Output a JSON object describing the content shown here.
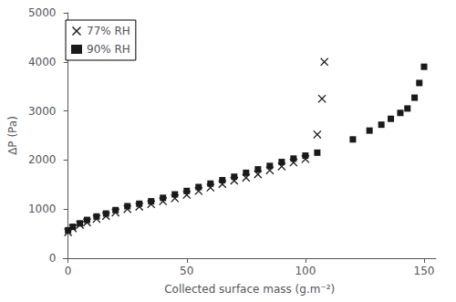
{
  "chart_data": {
    "type": "scatter",
    "xlabel": "Collected surface mass (g.m⁻²)",
    "ylabel": "ΔP (Pa)",
    "series": [
      {
        "name": "77% RH",
        "marker": "x",
        "color": "#1a1a1a",
        "x": [
          0,
          2,
          5,
          8,
          12,
          16,
          20,
          25,
          30,
          35,
          40,
          45,
          50,
          55,
          60,
          65,
          70,
          75,
          80,
          85,
          90,
          95,
          100,
          105,
          107,
          108
        ],
        "values": [
          530,
          610,
          680,
          730,
          800,
          860,
          930,
          1000,
          1050,
          1100,
          1160,
          1220,
          1290,
          1370,
          1440,
          1510,
          1580,
          1640,
          1710,
          1790,
          1870,
          1950,
          2020,
          2520,
          3250,
          4000
        ]
      },
      {
        "name": "90% RH",
        "marker": "square",
        "color": "#1a1a1a",
        "x": [
          0,
          2,
          5,
          8,
          12,
          16,
          20,
          25,
          30,
          35,
          40,
          45,
          50,
          55,
          60,
          65,
          70,
          75,
          80,
          85,
          90,
          95,
          100,
          105,
          120,
          127,
          132,
          136,
          140,
          143,
          146,
          148,
          150
        ],
        "values": [
          570,
          640,
          710,
          780,
          850,
          910,
          980,
          1060,
          1110,
          1160,
          1230,
          1300,
          1370,
          1450,
          1520,
          1590,
          1660,
          1740,
          1810,
          1880,
          1960,
          2030,
          2090,
          2150,
          2420,
          2600,
          2720,
          2840,
          2960,
          3050,
          3270,
          3570,
          3900
        ]
      }
    ],
    "xlim": [
      -2,
      155
    ],
    "ylim": [
      0,
      5000
    ],
    "xticks": [
      0,
      50,
      100,
      150
    ],
    "yticks": [
      0,
      1000,
      2000,
      3000,
      4000,
      5000
    ],
    "grid": false,
    "legend": "upper left"
  }
}
